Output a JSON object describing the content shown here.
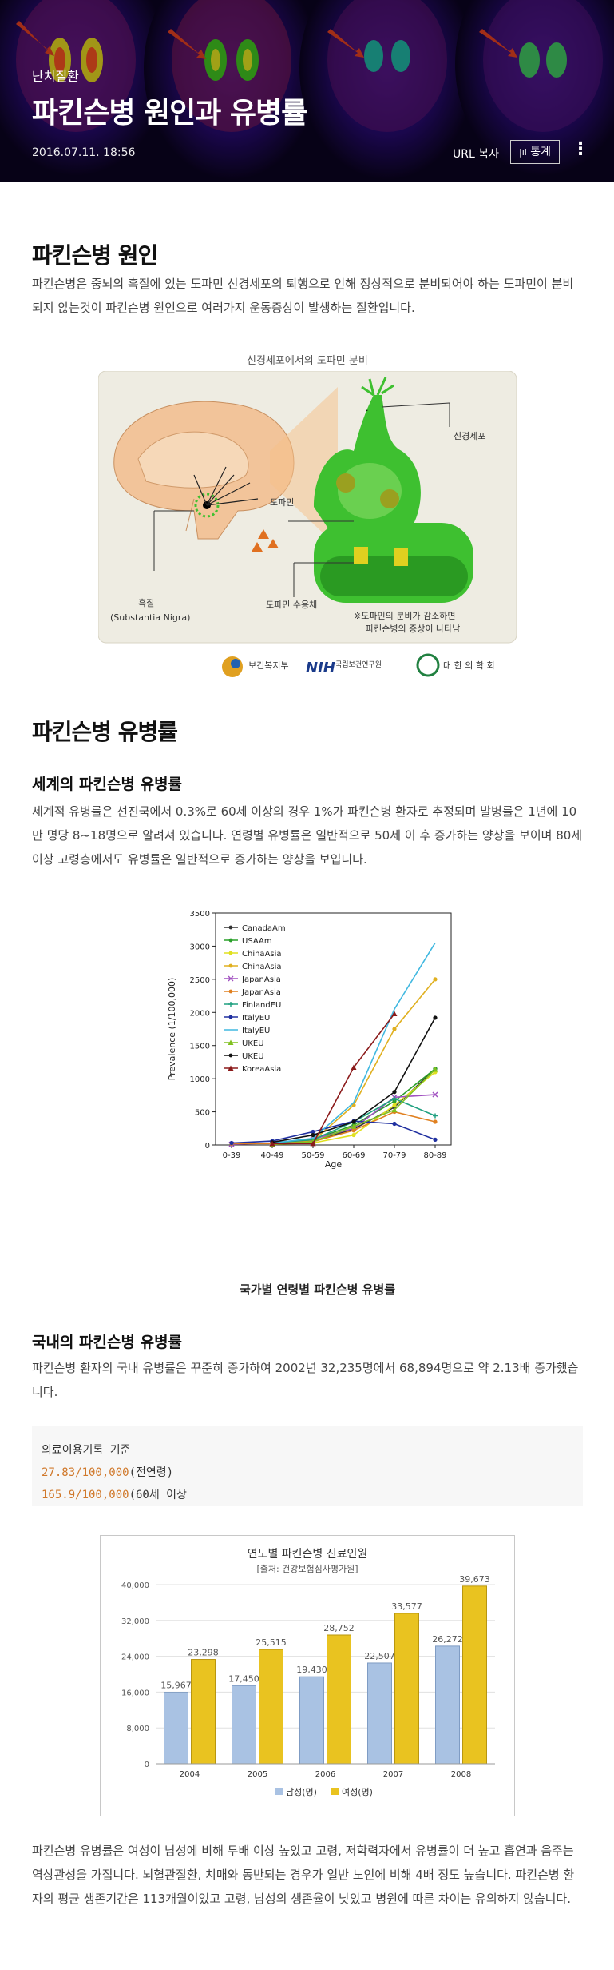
{
  "header": {
    "category": "난치질환",
    "title": "파킨슨병 원인과 유병률",
    "date": "2016.07.11. 18:56",
    "url_copy": "URL 복사",
    "stats_label": "통계",
    "more_label": "⋮"
  },
  "section1": {
    "title": "파킨슨병 원인",
    "text": "파킨슨병은 중뇌의 흑질에 있는 도파민 신경세포의 퇴행으로 인해 정상적으로 분비되어야 하는 도파민이 분비되지 않는것이 파킨슨병 원인으로 여러가지 운동증상이 발생하는 질환입니다."
  },
  "figure1": {
    "caption": "신경세포에서의 도파민 분비",
    "label_neuron": "신경세포",
    "label_dopamine": "도파민",
    "label_receptor": "도파민 수용체",
    "label_substantia_ko": "흑질",
    "label_substantia_en": "(Substantia Nigra)",
    "note_line1": "※도파민의 분비가 감소하면",
    "note_line2": "파킨슨병의 증상이 나타남",
    "logo1": "보건복지부",
    "logo2": "국립보건연구원",
    "logo3": "대 한 의 학 회"
  },
  "section2": {
    "title": "파킨슨병 유병률",
    "world_title": "세계의 파킨슨병 유병률",
    "world_text": "세계적 유병률은 선진국에서 0.3%로 60세 이상의 경우 1%가 파킨슨병 환자로 추정되며 발병률은 1년에 10만 명당 8~18명으로 알려져 있습니다. 연령별 유병률은 일반적으로 50세 이 후 증가하는 양상을 보이며 80세 이상 고령층에서도 유병률은 일반적으로 증가하는 양상을 보입니다.",
    "world_caption": "국가별 연령별 파킨슨병 유병률",
    "korea_title": "국내의 파킨슨병 유병률",
    "korea_text": "파킨슨병 환자의 국내 유병률은 꾸준히 증가하여 2002년 32,235명에서 68,894명으로 약 2.13배 증가했습니다.",
    "code_line1": "의료이용기록 기준",
    "code_line2_num": "27.83/100,000",
    "code_line2_txt": "(전연령)",
    "code_line3_num": "165.9/100,000",
    "code_line3_txt": "(60세 이상",
    "bottom_text": "파킨슨병 유병률은 여성이 남성에 비해 두배 이상 높았고 고령, 저학력자에서 유병률이 더 높고 흡연과 음주는 역상관성을 가집니다. 뇌혈관질환, 치매와 동반되는 경우가 일반 노인에 비해 4배 정도 높습니다. 파킨슨병 환자의 평균 생존기간은 113개월이었고 고령, 남성의 생존율이 낮았고 병원에 따른 차이는 유의하지 않습니다."
  },
  "chart_data": [
    {
      "type": "line",
      "xlabel": "Age",
      "ylabel": "Prevalence (1/100,000)",
      "ylim": [
        0,
        3500
      ],
      "yticks": [
        0,
        500,
        1000,
        1500,
        2000,
        2500,
        3000,
        3500
      ],
      "categories": [
        "0-39",
        "40-49",
        "50-59",
        "60-69",
        "70-79",
        "80-89"
      ],
      "legend_position": "top-left",
      "series": [
        {
          "name": "CanadaAm",
          "color": "#333333",
          "marker": "dot",
          "values": [
            null,
            30,
            60,
            240,
            570,
            1150
          ]
        },
        {
          "name": "USAAm",
          "color": "#2aa02a",
          "marker": "dot",
          "values": [
            null,
            20,
            80,
            300,
            660,
            1150
          ]
        },
        {
          "name": "ChinaAsia",
          "color": "#e0e020",
          "marker": "dot",
          "values": [
            null,
            10,
            30,
            150,
            600,
            1100
          ]
        },
        {
          "name": "ChinaAsia",
          "color": "#e0b020",
          "marker": "dot",
          "values": [
            null,
            20,
            60,
            600,
            1750,
            2500
          ]
        },
        {
          "name": "JapanAsia",
          "color": "#a050c0",
          "marker": "x",
          "values": [
            10,
            30,
            90,
            250,
            720,
            760
          ]
        },
        {
          "name": "JapanAsia",
          "color": "#e08020",
          "marker": "dot",
          "values": [
            20,
            20,
            50,
            220,
            500,
            350
          ]
        },
        {
          "name": "FinlandEU",
          "color": "#20a080",
          "marker": "plus",
          "values": [
            null,
            30,
            80,
            350,
            700,
            440
          ]
        },
        {
          "name": "ItalyEU",
          "color": "#2030a0",
          "marker": "dot",
          "values": [
            30,
            60,
            200,
            360,
            320,
            80
          ]
        },
        {
          "name": "ItalyEU",
          "color": "#40b8e0",
          "marker": "none",
          "values": [
            null,
            30,
            100,
            640,
            2050,
            3050
          ]
        },
        {
          "name": "UKEU",
          "color": "#80c020",
          "marker": "triangle",
          "values": [
            null,
            10,
            50,
            280,
            530,
            1140
          ]
        },
        {
          "name": "UKEU",
          "color": "#111111",
          "marker": "dot",
          "values": [
            null,
            40,
            150,
            350,
            800,
            1920
          ]
        },
        {
          "name": "KoreaAsia",
          "color": "#8b1a1a",
          "marker": "triangle",
          "values": [
            null,
            20,
            20,
            1170,
            1980,
            null
          ]
        }
      ]
    },
    {
      "type": "bar",
      "title": "연도별 파킨슨병 진료인원",
      "subtitle": "[출처: 건강보험심사평가원]",
      "categories": [
        "2004",
        "2005",
        "2006",
        "2007",
        "2008"
      ],
      "ylim": [
        0,
        40000
      ],
      "yticks": [
        "0",
        "8,000",
        "16,000",
        "24,000",
        "32,000",
        "40,000"
      ],
      "legend_position": "bottom",
      "series": [
        {
          "name": "남성(명)",
          "color": "#a9c2e3",
          "values": [
            15967,
            17450,
            19430,
            22507,
            26272
          ],
          "labels": [
            "15,967",
            "17,450",
            "19,430",
            "22,507",
            "26,272"
          ]
        },
        {
          "name": "여성(명)",
          "color": "#e9c320",
          "values": [
            23298,
            25515,
            28752,
            33577,
            39673
          ],
          "labels": [
            "23,298",
            "25,515",
            "28,752",
            "33,577",
            "39,673"
          ]
        }
      ]
    }
  ]
}
